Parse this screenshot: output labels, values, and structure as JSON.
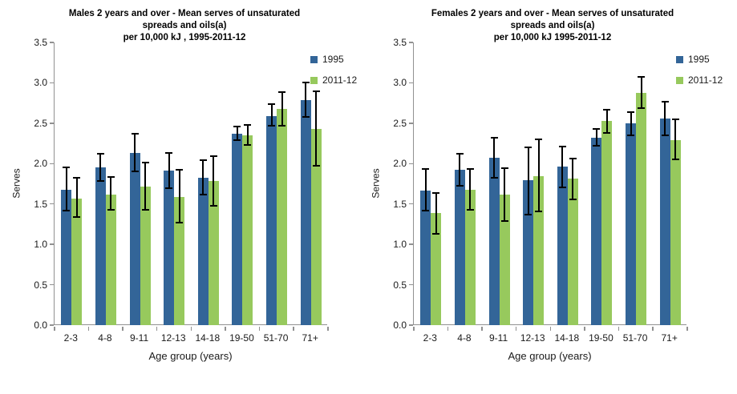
{
  "colors": {
    "series_1995": "#336598",
    "series_2011_12": "#97C95D",
    "axis": "#919191",
    "error_bar": "#000000",
    "text": "#000000"
  },
  "chart_data": [
    {
      "type": "bar",
      "title_lines": [
        "Males 2 years and over - Mean serves of unsaturated",
        "spreads and oils(a)",
        "per 10,000 kJ , 1995-2011-12"
      ],
      "xlabel": "Age group (years)",
      "ylabel": "Serves",
      "ylim": [
        0,
        3.5
      ],
      "ytick_step": 0.5,
      "ytick_labels": [
        "0.0",
        "0.5",
        "1.0",
        "1.5",
        "2.0",
        "2.5",
        "3.0",
        "3.5"
      ],
      "grid": false,
      "legend_position": "top-right",
      "error_bars": true,
      "categories": [
        "2-3",
        "4-8",
        "9-11",
        "12-13",
        "14-18",
        "19-50",
        "51-70",
        "71+"
      ],
      "series": [
        {
          "name": "1995",
          "color": "#336598",
          "values": [
            1.68,
            1.95,
            2.13,
            1.91,
            1.82,
            2.37,
            2.59,
            2.79
          ],
          "error_low": [
            1.42,
            1.78,
            1.9,
            1.7,
            1.62,
            2.29,
            2.47,
            2.58
          ],
          "error_high": [
            1.95,
            2.12,
            2.37,
            2.13,
            2.04,
            2.46,
            2.74,
            3.0
          ]
        },
        {
          "name": "2011-12",
          "color": "#97C95D",
          "values": [
            1.57,
            1.62,
            1.72,
            1.59,
            1.78,
            2.35,
            2.68,
            2.43
          ],
          "error_low": [
            1.34,
            1.43,
            1.43,
            1.27,
            1.48,
            2.23,
            2.47,
            1.97
          ],
          "error_high": [
            1.82,
            1.83,
            2.01,
            1.92,
            2.09,
            2.48,
            2.89,
            2.9
          ]
        }
      ]
    },
    {
      "type": "bar",
      "title_lines": [
        "Females 2 years and over - Mean serves of unsaturated",
        "spreads and oils(a)",
        "per 10,000 kJ 1995-2011-12"
      ],
      "xlabel": "Age group (years)",
      "ylabel": "Serves",
      "ylim": [
        0,
        3.5
      ],
      "ytick_step": 0.5,
      "ytick_labels": [
        "0.0",
        "0.5",
        "1.0",
        "1.5",
        "2.0",
        "2.5",
        "3.0",
        "3.5"
      ],
      "grid": false,
      "legend_position": "top-right",
      "error_bars": true,
      "categories": [
        "2-3",
        "4-8",
        "9-11",
        "12-13",
        "14-18",
        "19-50",
        "51-70",
        "71+"
      ],
      "series": [
        {
          "name": "1995",
          "color": "#336598",
          "values": [
            1.67,
            1.92,
            2.07,
            1.79,
            1.96,
            2.32,
            2.5,
            2.56
          ],
          "error_low": [
            1.42,
            1.73,
            1.82,
            1.37,
            1.71,
            2.22,
            2.35,
            2.35
          ],
          "error_high": [
            1.93,
            2.12,
            2.32,
            2.2,
            2.21,
            2.43,
            2.64,
            2.77
          ]
        },
        {
          "name": "2011-12",
          "color": "#97C95D",
          "values": [
            1.39,
            1.68,
            1.62,
            1.84,
            1.81,
            2.53,
            2.88,
            2.29
          ],
          "error_low": [
            1.13,
            1.43,
            1.29,
            1.41,
            1.56,
            2.38,
            2.69,
            2.05
          ],
          "error_high": [
            1.64,
            1.93,
            1.94,
            2.3,
            2.06,
            2.67,
            3.07,
            2.55
          ]
        }
      ]
    }
  ]
}
